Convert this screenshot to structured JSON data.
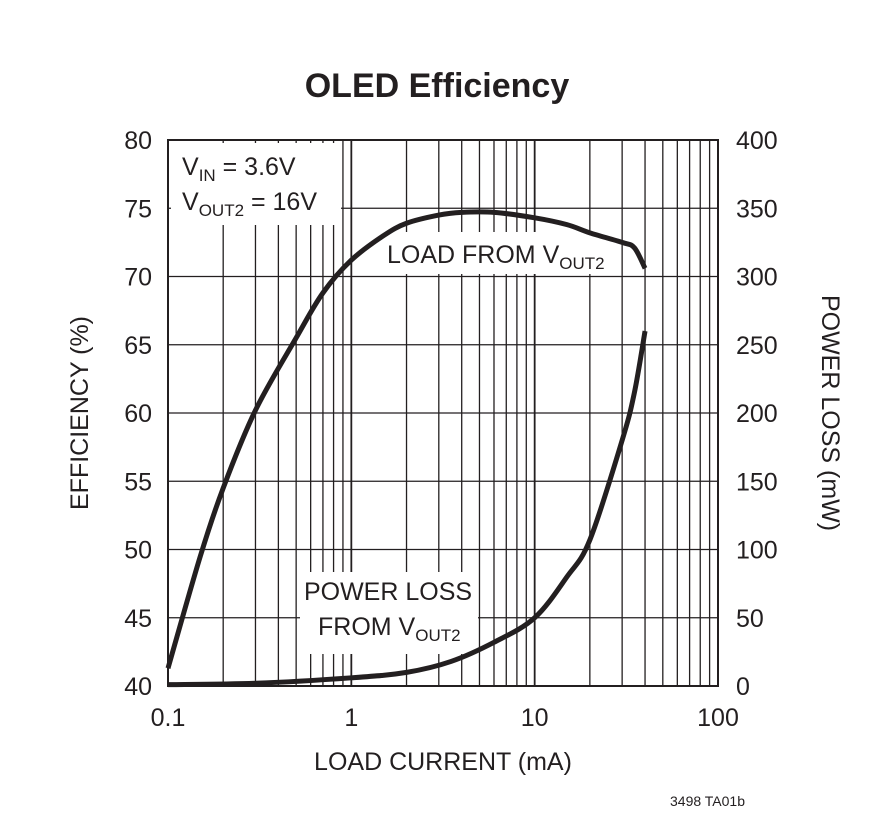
{
  "chart_data": {
    "type": "line",
    "title": "OLED Efficiency",
    "xlabel": "LOAD CURRENT (mA)",
    "ylabel": "EFFICIENCY (%)",
    "y2label": "POWER LOSS (mW)",
    "xscale": "log",
    "xlim": [
      0.1,
      100
    ],
    "ylim": [
      40,
      80
    ],
    "y2lim": [
      0,
      400
    ],
    "grid": true,
    "xticks": [
      "0.1",
      "1",
      "10",
      "100"
    ],
    "yticks": [
      "40",
      "45",
      "50",
      "55",
      "60",
      "65",
      "70",
      "75",
      "80"
    ],
    "y2ticks": [
      "0",
      "50",
      "100",
      "150",
      "200",
      "250",
      "300",
      "350",
      "400"
    ],
    "conditions": {
      "line1": {
        "main": "V",
        "sub": "IN",
        "rest": " = 3.6V"
      },
      "line2": {
        "main": "V",
        "sub": "OUT2",
        "rest": " = 16V"
      }
    },
    "series": [
      {
        "name": "LOAD FROM VOUT2",
        "label": {
          "main": "LOAD FROM V",
          "sub": "OUT2"
        },
        "axis": "left",
        "x": [
          0.1,
          0.15,
          0.2,
          0.3,
          0.5,
          0.7,
          1,
          1.5,
          2,
          3,
          4,
          6,
          10,
          15,
          20,
          30,
          35,
          40
        ],
        "y": [
          41.3,
          49.5,
          54.5,
          60.2,
          65.5,
          68.8,
          71.2,
          73.0,
          73.9,
          74.5,
          74.7,
          74.7,
          74.3,
          73.8,
          73.2,
          72.5,
          72.1,
          70.6
        ]
      },
      {
        "name": "POWER LOSS FROM VOUT2",
        "label": {
          "line1": "POWER LOSS",
          "main": "FROM V",
          "sub": "OUT2"
        },
        "axis": "right",
        "x": [
          0.1,
          0.3,
          1,
          2,
          3.5,
          6,
          10,
          15,
          20,
          30,
          35,
          40
        ],
        "y": [
          1,
          2,
          6,
          10,
          18,
          32,
          50,
          80,
          107,
          180,
          215,
          260
        ]
      }
    ],
    "footnote": "3498 TA01b"
  }
}
